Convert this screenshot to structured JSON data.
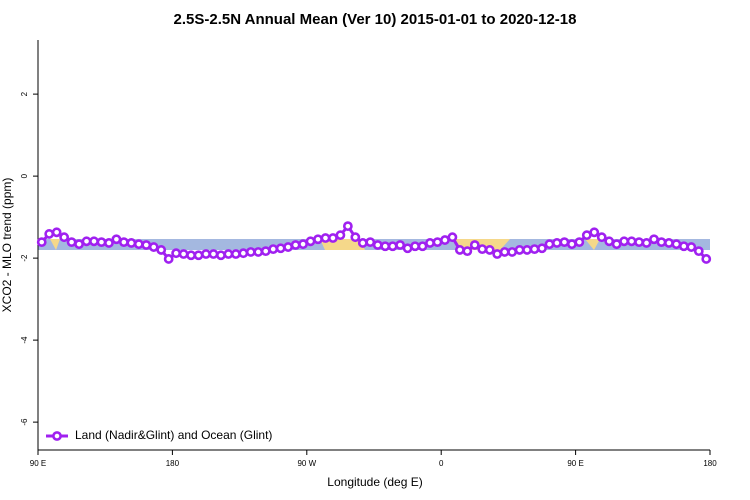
{
  "chart_data": {
    "type": "line",
    "title": "2.5S-2.5N Annual Mean (Ver 10)   2015-01-01 to 2020-12-18",
    "x_label": "Longitude (deg E)",
    "y_label": "XCO2 - MLO trend (ppm)",
    "xlim": [
      90,
      540
    ],
    "xticks": [
      {
        "value": 90,
        "label": "90 E"
      },
      180,
      {
        "value": 270,
        "label": "90 W"
      },
      {
        "value": 360,
        "label": "0"
      },
      {
        "value": 450,
        "label": "90 E"
      },
      {
        "value": 540,
        "label": "180"
      }
    ],
    "ylim": [
      -6.68,
      3.32
    ],
    "yticks": [
      -6,
      -4,
      -2,
      0,
      2
    ],
    "legend": "bottom-left",
    "x": [
      92.5,
      97.5,
      102.5,
      107.5,
      112.5,
      117.5,
      122.5,
      127.5,
      132.5,
      137.5,
      142.5,
      147.5,
      152.5,
      157.5,
      162.5,
      167.5,
      172.5,
      177.5,
      182.5,
      187.5,
      192.5,
      197.5,
      202.5,
      207.5,
      212.5,
      217.5,
      222.5,
      227.5,
      232.5,
      237.5,
      242.5,
      247.5,
      252.5,
      257.5,
      262.5,
      267.5,
      272.5,
      277.5,
      282.5,
      287.5,
      292.5,
      297.5,
      302.5,
      307.5,
      312.5,
      317.5,
      322.5,
      327.5,
      332.5,
      337.5,
      342.5,
      347.5,
      352.5,
      357.5,
      362.5,
      367.5,
      372.5,
      377.5,
      382.5,
      387.5,
      392.5,
      397.5,
      402.5,
      407.5,
      412.5,
      417.5,
      422.5,
      427.5,
      432.5,
      437.5,
      442.5,
      447.5,
      452.5,
      457.5,
      462.5,
      467.5,
      472.5,
      477.5,
      482.5,
      487.5,
      492.5,
      497.5,
      502.5,
      507.5,
      512.5,
      517.5,
      522.5,
      527.5,
      532.5,
      537.5
    ],
    "series": [
      {
        "name": "Land (Nadir&Glint) and Ocean (Glint)",
        "color": "#a020f0",
        "values": [
          -1.61,
          -1.41,
          -1.37,
          -1.49,
          -1.61,
          -1.66,
          -1.59,
          -1.59,
          -1.61,
          -1.63,
          -1.54,
          -1.61,
          -1.63,
          -1.66,
          -1.68,
          -1.73,
          -1.8,
          -2.02,
          -1.88,
          -1.9,
          -1.93,
          -1.93,
          -1.9,
          -1.9,
          -1.93,
          -1.9,
          -1.9,
          -1.88,
          -1.85,
          -1.85,
          -1.83,
          -1.78,
          -1.76,
          -1.73,
          -1.68,
          -1.66,
          -1.59,
          -1.54,
          -1.51,
          -1.51,
          -1.44,
          -1.22,
          -1.49,
          -1.63,
          -1.61,
          -1.68,
          -1.71,
          -1.71,
          -1.68,
          -1.76,
          -1.71,
          -1.71,
          -1.63,
          -1.61,
          -1.56,
          -1.49,
          -1.8,
          -1.83,
          -1.68,
          -1.78,
          -1.8,
          -1.9,
          -1.85,
          -1.85,
          -1.8,
          -1.8,
          -1.78,
          -1.76,
          -1.66,
          -1.63,
          -1.61,
          -1.66,
          -1.61,
          -1.44,
          -1.37,
          -1.49,
          -1.59,
          -1.66,
          -1.59,
          -1.59,
          -1.61,
          -1.63,
          -1.54,
          -1.61,
          -1.63,
          -1.66,
          -1.71,
          -1.73,
          -1.83,
          -2.02
        ]
      }
    ]
  }
}
